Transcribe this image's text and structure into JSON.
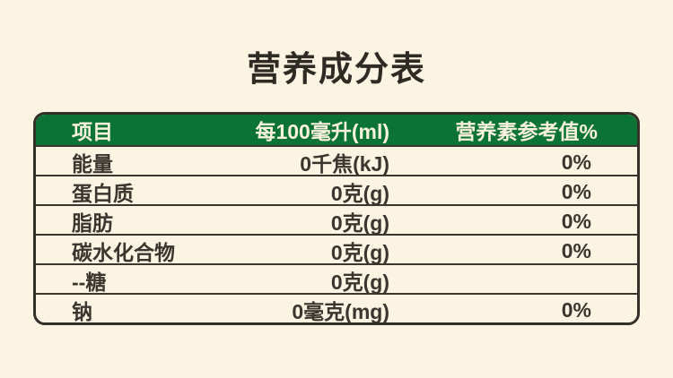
{
  "page": {
    "title": "营养成分表",
    "background_color": "#fcf4e2",
    "header_color": "#0a7335",
    "border_color": "#33302a",
    "text_color": "#3a352e"
  },
  "table": {
    "header": {
      "item": "项目",
      "amount": "每100毫升(ml)",
      "nrv": "营养素参考值%"
    },
    "rows": [
      {
        "item": "能量",
        "amount": "0千焦(kJ)",
        "nrv": "0%"
      },
      {
        "item": "蛋白质",
        "amount": "0克(g)",
        "nrv": "0%"
      },
      {
        "item": "脂肪",
        "amount": "0克(g)",
        "nrv": "0%"
      },
      {
        "item": "碳水化合物",
        "amount": "0克(g)",
        "nrv": "0%"
      },
      {
        "item": "--糖",
        "amount": "0克(g)",
        "nrv": ""
      },
      {
        "item": "钠",
        "amount": "0毫克(mg)",
        "nrv": "0%"
      }
    ]
  }
}
